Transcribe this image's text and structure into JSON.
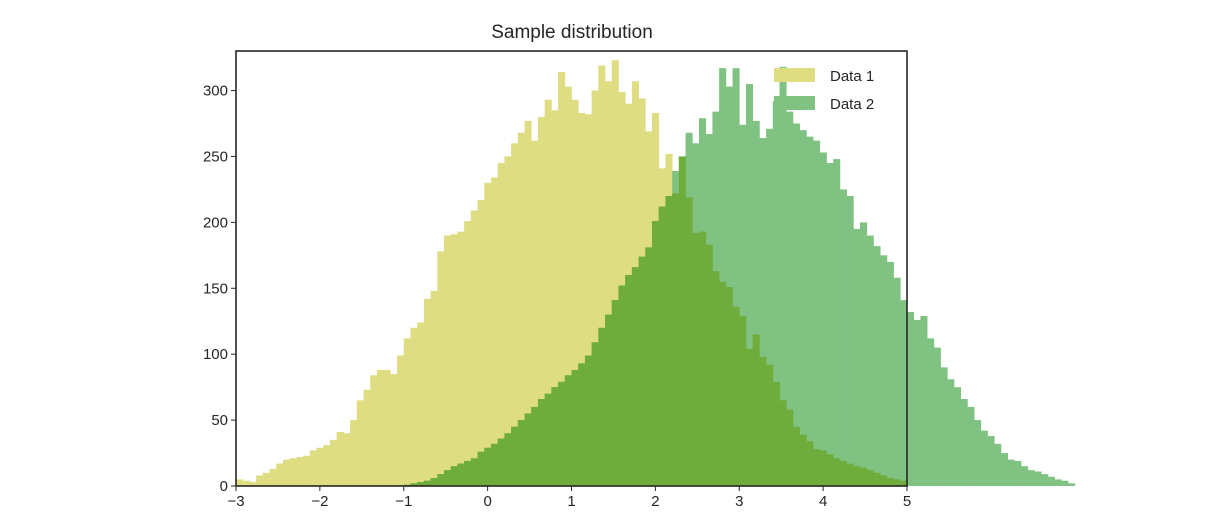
{
  "chart_data": {
    "type": "histogram",
    "title": "Sample distribution",
    "xlabel": "",
    "ylabel": "",
    "xlim": [
      -3,
      5
    ],
    "ylim": [
      0,
      330
    ],
    "grid": false,
    "legend_placement": "top-right",
    "x_ticks": [
      -3,
      -2,
      -1,
      0,
      1,
      2,
      3,
      4,
      5
    ],
    "x_tick_labels": [
      "−3",
      "−2",
      "−1",
      "0",
      "1",
      "2",
      "3",
      "4",
      "5"
    ],
    "y_ticks": [
      0,
      50,
      100,
      150,
      200,
      250,
      300
    ],
    "y_tick_labels": [
      "0",
      "50",
      "100",
      "150",
      "200",
      "250",
      "300"
    ],
    "bin_width": 0.08,
    "overlap_color": "#6eac3c",
    "series": [
      {
        "name": "Data 1",
        "color": "#dedd82",
        "x_start": -3.0,
        "values": [
          5,
          4,
          3,
          8,
          10,
          13,
          17,
          20,
          21,
          22,
          23,
          27,
          29,
          31,
          35,
          41,
          40,
          50,
          65,
          73,
          84,
          88,
          88,
          85,
          99,
          112,
          120,
          124,
          142,
          148,
          178,
          190,
          191,
          193,
          201,
          209,
          217,
          230,
          234,
          245,
          250,
          260,
          268,
          277,
          262,
          280,
          293,
          285,
          314,
          303,
          293,
          283,
          282,
          300,
          319,
          307,
          323,
          299,
          290,
          307,
          294,
          269,
          283,
          241,
          252,
          222,
          250,
          219,
          192,
          193,
          183,
          163,
          155,
          151,
          136,
          129,
          104,
          115,
          98,
          92,
          79,
          65,
          58,
          45,
          39,
          34,
          28,
          27,
          24,
          21,
          19,
          17,
          15,
          14,
          12,
          10,
          8,
          6,
          5,
          4
        ]
      },
      {
        "name": "Data 2",
        "color": "#80c282",
        "x_start": -1.0,
        "values": [
          1,
          2,
          3,
          4,
          6,
          9,
          12,
          15,
          17,
          19,
          21,
          26,
          29,
          32,
          36,
          40,
          45,
          50,
          55,
          60,
          66,
          70,
          75,
          79,
          84,
          88,
          93,
          99,
          109,
          120,
          130,
          141,
          152,
          160,
          166,
          174,
          181,
          201,
          212,
          220,
          239,
          250,
          268,
          260,
          279,
          267,
          284,
          317,
          303,
          317,
          274,
          305,
          277,
          264,
          271,
          292,
          318,
          284,
          275,
          270,
          265,
          262,
          253,
          245,
          248,
          225,
          220,
          195,
          200,
          190,
          182,
          175,
          170,
          158,
          141,
          132,
          126,
          129,
          112,
          105,
          90,
          81,
          75,
          66,
          60,
          50,
          42,
          38,
          32,
          25,
          20,
          19,
          15,
          12,
          11,
          9,
          7,
          5,
          4,
          2
        ]
      }
    ]
  }
}
